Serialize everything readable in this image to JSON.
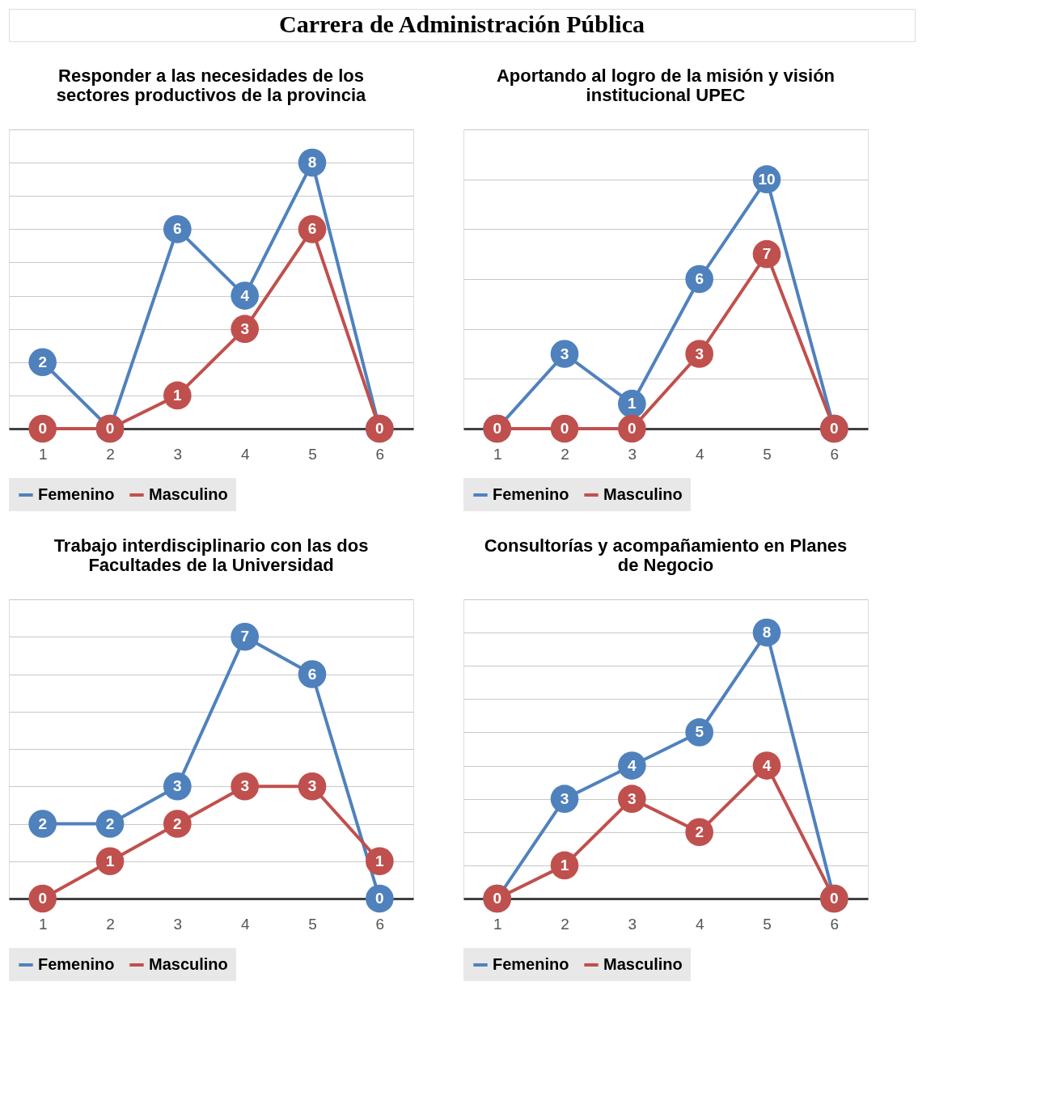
{
  "chart_data": [
    {
      "type": "other",
      "title": "Carrera de Administración Pública"
    },
    {
      "type": "line",
      "title": "Responder a las necesidades de los sectores productivos de la provincia",
      "categories": [
        "1",
        "2",
        "3",
        "4",
        "5",
        "6"
      ],
      "series": [
        {
          "name": "Femenino",
          "color": "#4f81bd",
          "values": [
            2,
            0,
            6,
            4,
            8,
            0
          ],
          "value_labels": [
            "2",
            null,
            "6",
            "4",
            "8",
            null
          ]
        },
        {
          "name": "Masculino",
          "color": "#c0504d",
          "values": [
            0,
            0,
            1,
            3,
            6,
            0
          ]
        }
      ],
      "ylim": [
        0,
        9
      ],
      "yticks": [
        {
          "value": 0,
          "label": null
        },
        {
          "value": 1,
          "label": null
        },
        {
          "value": 2,
          "label": null
        },
        {
          "value": 3,
          "label": null
        },
        {
          "value": 4,
          "label": null
        },
        {
          "value": 5,
          "label": null
        },
        {
          "value": 6,
          "label": null
        },
        {
          "value": 7,
          "label": null
        },
        {
          "value": 8,
          "label": null
        },
        {
          "value": 9,
          "label": null
        }
      ],
      "data_labels": true,
      "grid": "y",
      "legend": "bottom",
      "marker": "circle",
      "line_style": "solid",
      "tick_labels": "x"
    },
    {
      "type": "line",
      "title": "Aportando al logro de la misión y visión institucional UPEC",
      "categories": [
        "1",
        "2",
        "3",
        "4",
        "5",
        "6"
      ],
      "series": [
        {
          "name": "Femenino",
          "color": "#4f81bd",
          "values": [
            0,
            3,
            1,
            6,
            10,
            0
          ],
          "value_labels": [
            null,
            "3",
            "1",
            "6",
            "10",
            null
          ]
        },
        {
          "name": "Masculino",
          "color": "#c0504d",
          "values": [
            0,
            0,
            0,
            3,
            7,
            0
          ]
        }
      ],
      "ylim": [
        0,
        12
      ],
      "yticks": [
        {
          "value": 0,
          "label": null
        },
        {
          "value": 2,
          "label": null
        },
        {
          "value": 4,
          "label": null
        },
        {
          "value": 6,
          "label": null
        },
        {
          "value": 8,
          "label": null
        },
        {
          "value": 10,
          "label": null
        },
        {
          "value": 12,
          "label": null
        }
      ],
      "data_labels": true,
      "grid": "y",
      "legend": "bottom",
      "marker": "circle",
      "line_style": "solid",
      "tick_labels": "x"
    },
    {
      "type": "line",
      "title": "Trabajo interdisciplinario con las dos Facultades de la Universidad",
      "categories": [
        "1",
        "2",
        "3",
        "4",
        "5",
        "6"
      ],
      "series": [
        {
          "name": "Femenino",
          "color": "#4f81bd",
          "values": [
            2,
            2,
            3,
            7,
            6,
            0
          ]
        },
        {
          "name": "Masculino",
          "color": "#c0504d",
          "values": [
            0,
            1,
            2,
            3,
            3,
            1
          ]
        }
      ],
      "ylim": [
        0,
        8
      ],
      "yticks": [
        {
          "value": 0,
          "label": null
        },
        {
          "value": 1,
          "label": null
        },
        {
          "value": 2,
          "label": null
        },
        {
          "value": 3,
          "label": null
        },
        {
          "value": 4,
          "label": null
        },
        {
          "value": 5,
          "label": null
        },
        {
          "value": 6,
          "label": null
        },
        {
          "value": 7,
          "label": null
        },
        {
          "value": 8,
          "label": null
        }
      ],
      "data_labels": true,
      "grid": "y",
      "legend": "bottom",
      "marker": "circle",
      "line_style": "solid",
      "tick_labels": "x"
    },
    {
      "type": "line",
      "title": "Consultorías y acompañamiento en Planes de Negocio",
      "categories": [
        "1",
        "2",
        "3",
        "4",
        "5",
        "6"
      ],
      "series": [
        {
          "name": "Femenino",
          "color": "#4f81bd",
          "values": [
            0,
            3,
            4,
            5,
            8,
            0
          ],
          "value_labels": [
            null,
            "3",
            "4",
            "5",
            "8",
            null
          ]
        },
        {
          "name": "Masculino",
          "color": "#c0504d",
          "values": [
            0,
            1,
            3,
            2,
            4,
            0
          ]
        }
      ],
      "ylim": [
        0,
        9
      ],
      "yticks": [
        {
          "value": 0,
          "label": null
        },
        {
          "value": 1,
          "label": null
        },
        {
          "value": 2,
          "label": null
        },
        {
          "value": 3,
          "label": null
        },
        {
          "value": 4,
          "label": null
        },
        {
          "value": 5,
          "label": null
        },
        {
          "value": 6,
          "label": null
        },
        {
          "value": 7,
          "label": null
        },
        {
          "value": 8,
          "label": null
        },
        {
          "value": 9,
          "label": null
        }
      ],
      "data_labels": true,
      "grid": "y",
      "legend": "bottom",
      "marker": "circle",
      "line_style": "solid",
      "tick_labels": "x"
    }
  ]
}
